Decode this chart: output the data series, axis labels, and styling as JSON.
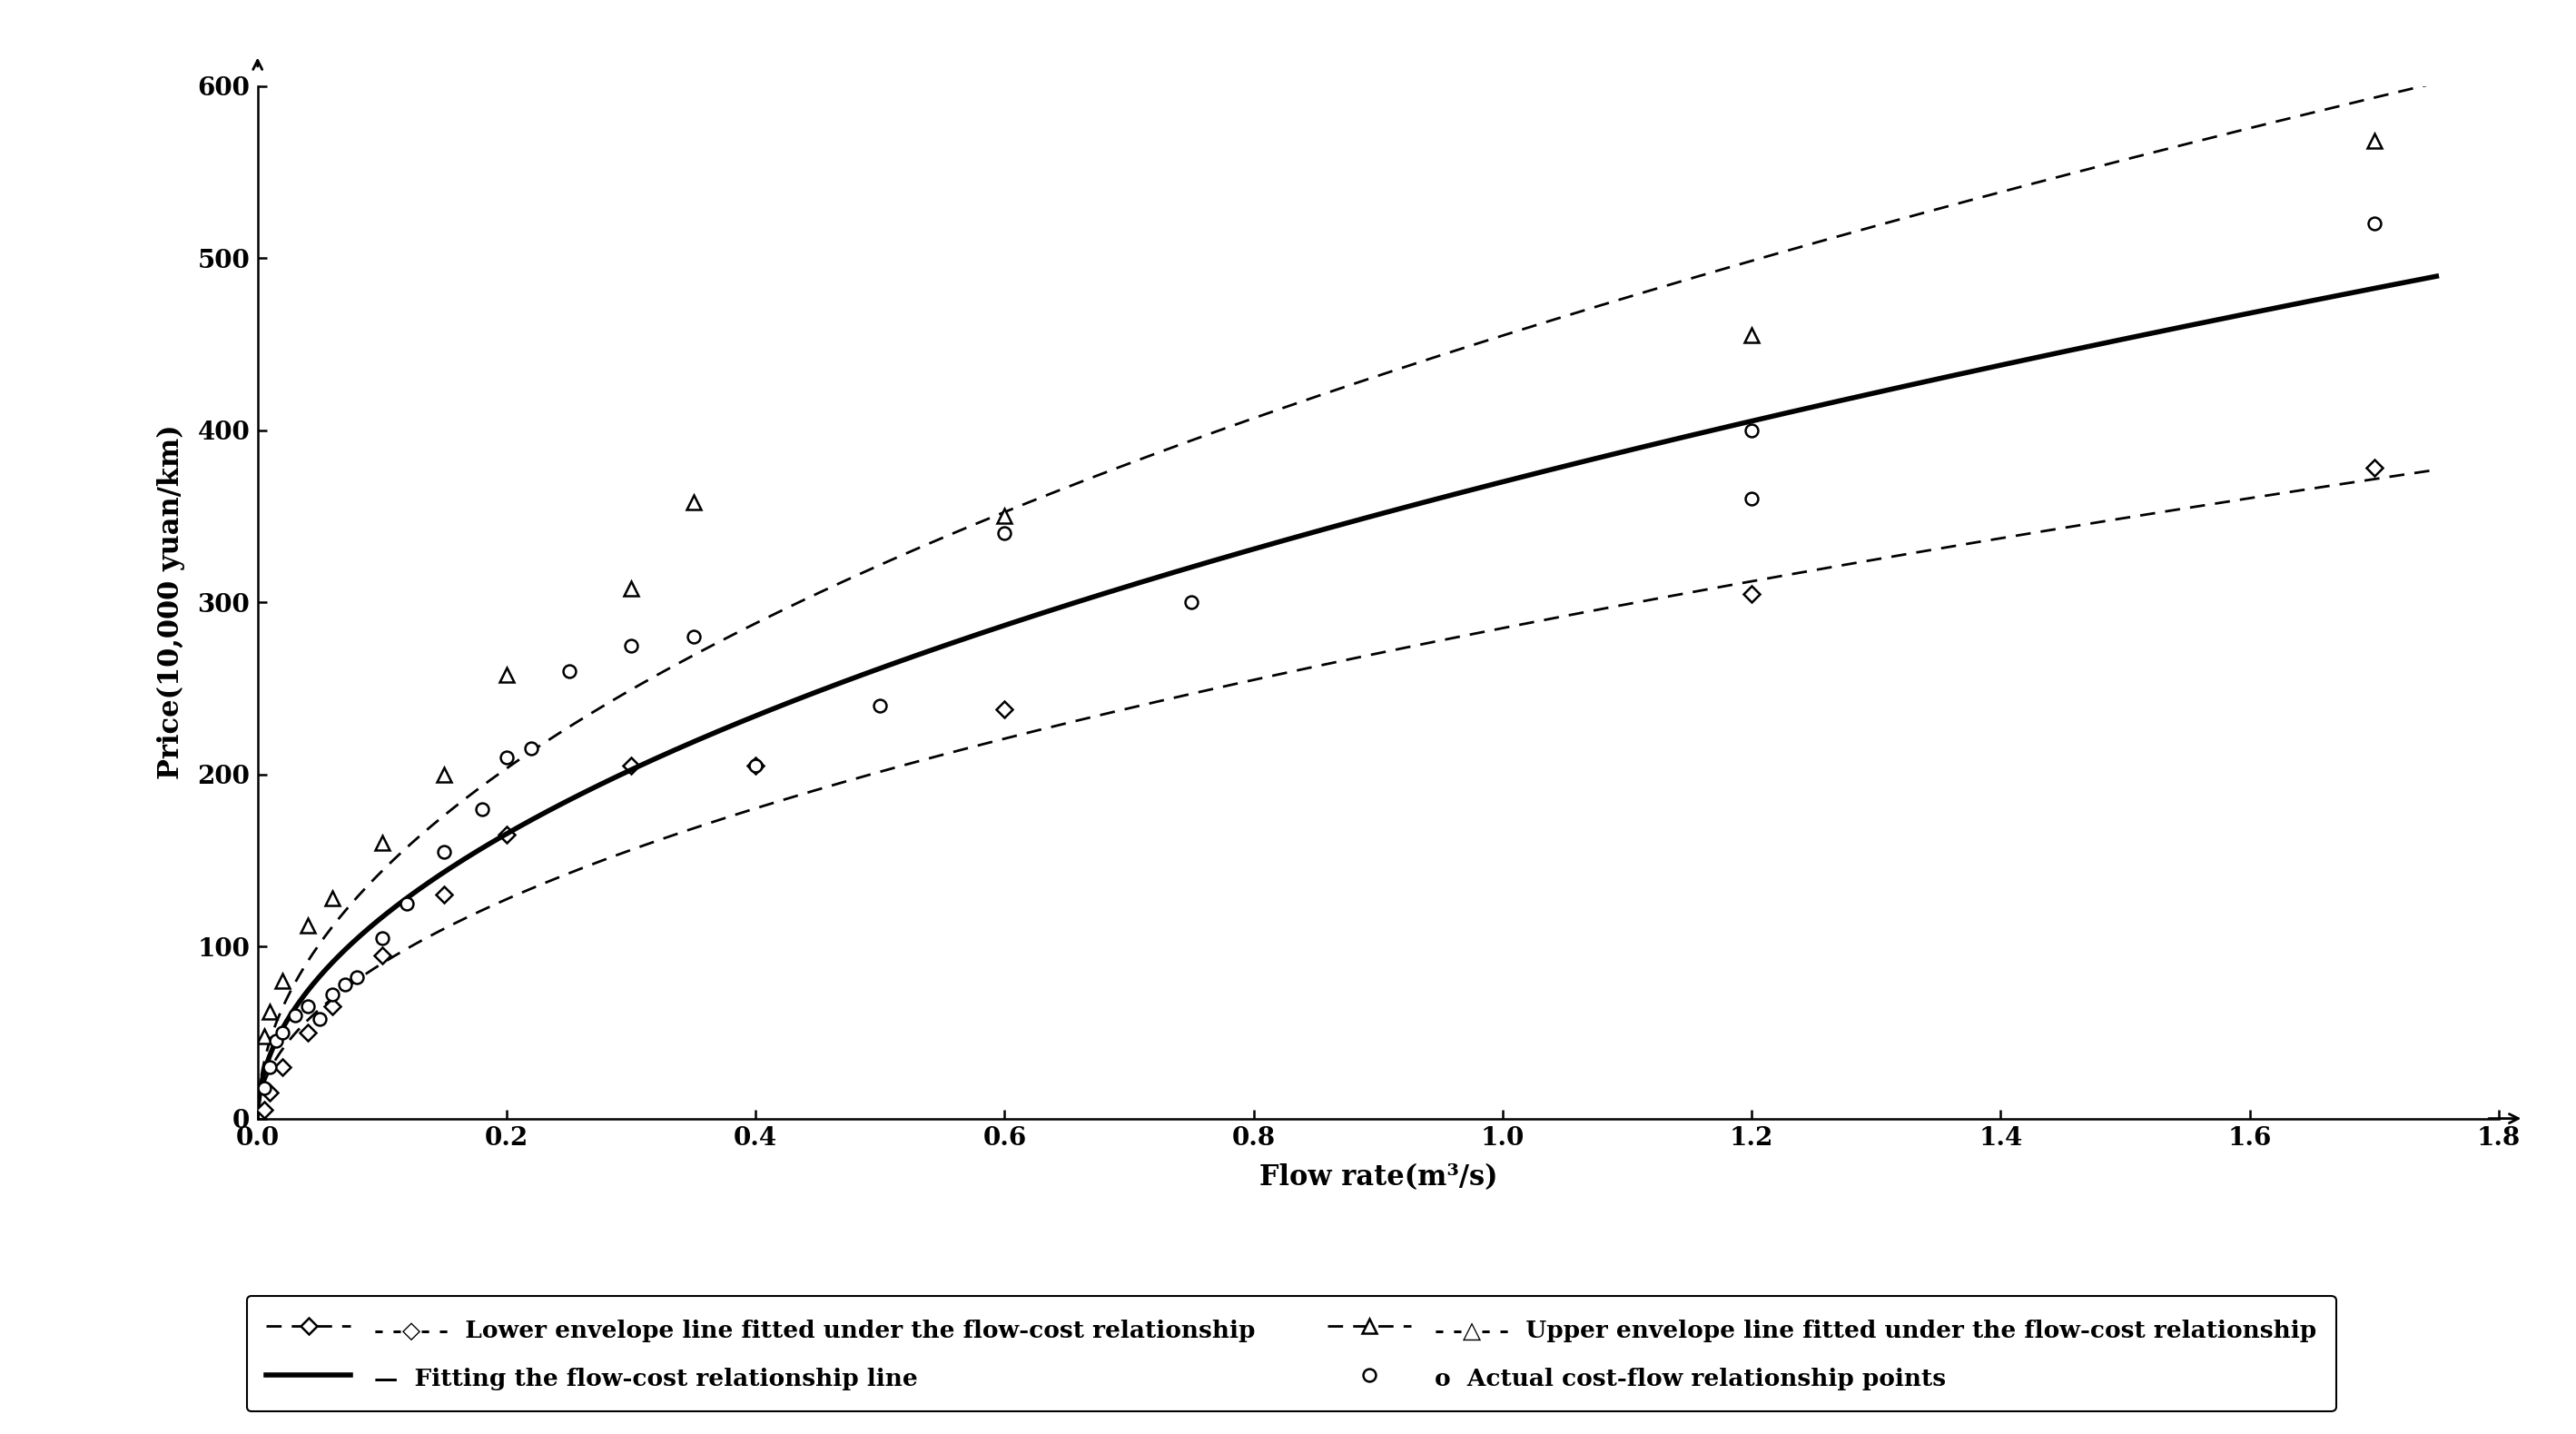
{
  "xlabel": "Flow rate(m³/s)",
  "ylabel": "Price(10,000 yuan/km)",
  "xlim": [
    0,
    1.8
  ],
  "ylim": [
    0,
    600
  ],
  "xticks": [
    0.0,
    0.2,
    0.4,
    0.6,
    0.8,
    1.0,
    1.2,
    1.4,
    1.6,
    1.8
  ],
  "yticks": [
    0,
    100,
    200,
    300,
    400,
    500,
    600
  ],
  "fit_a": 370.0,
  "fit_b": 0.5,
  "lower_a": 285.0,
  "lower_b": 0.5,
  "upper_a": 455.0,
  "upper_b": 0.5,
  "actual_points_x": [
    0.005,
    0.01,
    0.015,
    0.02,
    0.03,
    0.04,
    0.05,
    0.06,
    0.07,
    0.08,
    0.1,
    0.12,
    0.15,
    0.18,
    0.2,
    0.22,
    0.25,
    0.3,
    0.35,
    0.4,
    0.5,
    0.6,
    0.75,
    1.2,
    1.2,
    1.7
  ],
  "actual_points_y": [
    18,
    30,
    45,
    50,
    60,
    65,
    58,
    72,
    78,
    82,
    105,
    125,
    155,
    180,
    210,
    215,
    260,
    275,
    280,
    205,
    240,
    340,
    300,
    360,
    400,
    520
  ],
  "lower_env_x": [
    0.005,
    0.01,
    0.02,
    0.04,
    0.06,
    0.1,
    0.15,
    0.2,
    0.3,
    0.4,
    0.6,
    1.2,
    1.7
  ],
  "lower_env_y": [
    5,
    15,
    30,
    50,
    65,
    95,
    130,
    165,
    205,
    205,
    238,
    305,
    378
  ],
  "upper_env_x": [
    0.005,
    0.01,
    0.02,
    0.04,
    0.06,
    0.1,
    0.15,
    0.2,
    0.3,
    0.35,
    0.6,
    1.2,
    1.7
  ],
  "upper_env_y": [
    48,
    62,
    80,
    112,
    128,
    160,
    200,
    258,
    308,
    358,
    350,
    455,
    568
  ],
  "bg_color": "#ffffff",
  "font_size": 22,
  "tick_font_size": 20,
  "legend_font_size": 19
}
